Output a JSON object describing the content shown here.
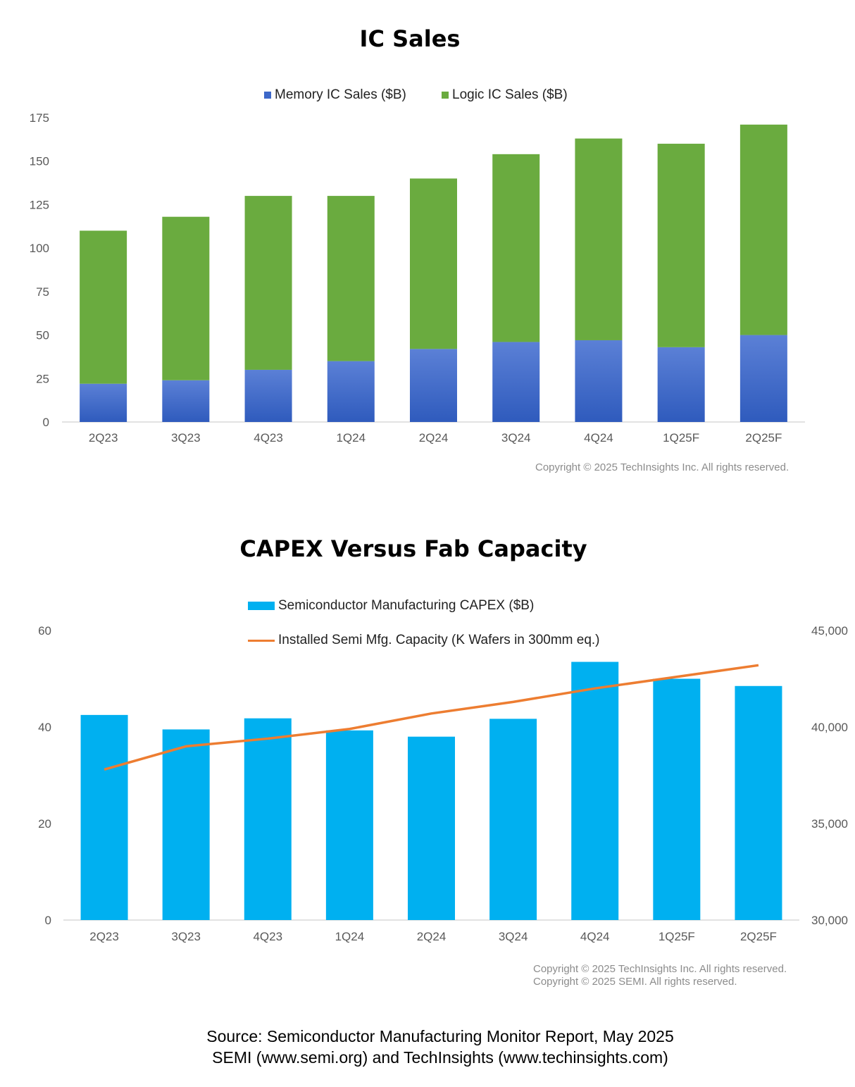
{
  "charts": {
    "ic_sales": {
      "title": "IC Sales",
      "legend": {
        "memory": "Memory IC Sales ($B)",
        "logic": "Logic IC Sales ($B)"
      },
      "copyright": "Copyright © 2025 TechInsights Inc.  All rights reserved."
    },
    "capex": {
      "title": "CAPEX Versus Fab Capacity",
      "legend": {
        "capex": "Semiconductor Manufacturing CAPEX ($B)",
        "capacity": "Installed Semi Mfg. Capacity (K Wafers in 300mm eq.)"
      },
      "copyright_1": "Copyright © 2025 TechInsights Inc.  All rights reserved.",
      "copyright_2": "Copyright © 2025 SEMI.  All rights reserved."
    }
  },
  "source": {
    "line1": "Source: Semiconductor Manufacturing Monitor Report, May 2025",
    "line2": "SEMI (www.semi.org) and TechInsights (www.techinsights.com)"
  },
  "colors": {
    "memory_top": "#5b80d6",
    "memory_bottom": "#2f5bbd",
    "logic": "#6aab3f",
    "capex": "#00b0f0",
    "capacity": "#ed7d31",
    "axis": "#d9d9d9"
  },
  "chart_data": [
    {
      "type": "bar",
      "stacked": true,
      "title": "IC Sales",
      "categories": [
        "2Q23",
        "3Q23",
        "4Q23",
        "1Q24",
        "2Q24",
        "3Q24",
        "4Q24",
        "1Q25F",
        "2Q25F"
      ],
      "series": [
        {
          "name": "Memory IC Sales ($B)",
          "values": [
            22,
            24,
            30,
            35,
            42,
            46,
            47,
            43,
            50
          ]
        },
        {
          "name": "Logic IC Sales ($B)",
          "values": [
            88,
            94,
            100,
            95,
            98,
            108,
            116,
            117,
            121
          ]
        }
      ],
      "ylim": [
        0,
        175
      ],
      "yticks": [
        0,
        25,
        50,
        75,
        100,
        125,
        150,
        175
      ],
      "grid": false,
      "legend_position": "top"
    },
    {
      "type": "bar",
      "title": "CAPEX Versus Fab Capacity",
      "categories": [
        "2Q23",
        "3Q23",
        "4Q23",
        "1Q24",
        "2Q24",
        "3Q24",
        "4Q24",
        "1Q25F",
        "2Q25F"
      ],
      "series": [
        {
          "name": "Semiconductor Manufacturing CAPEX ($B)",
          "type": "bar",
          "axis": "left",
          "values": [
            42.5,
            39.5,
            41.8,
            39.3,
            38,
            41.7,
            53.5,
            50,
            48.5
          ]
        },
        {
          "name": "Installed Semi Mfg. Capacity (K Wafers in 300mm eq.)",
          "type": "line",
          "axis": "right",
          "values": [
            37800,
            39000,
            39400,
            39900,
            40700,
            41300,
            42000,
            42600,
            43200
          ]
        }
      ],
      "ylim": [
        0,
        60
      ],
      "yticks": [
        0,
        20,
        40,
        60
      ],
      "y2lim": [
        30000,
        45000
      ],
      "y2ticks": [
        "30,000",
        "35,000",
        "40,000",
        "45,000"
      ],
      "y2tick_values": [
        30000,
        35000,
        40000,
        45000
      ],
      "grid": false,
      "legend_position": "top"
    }
  ]
}
